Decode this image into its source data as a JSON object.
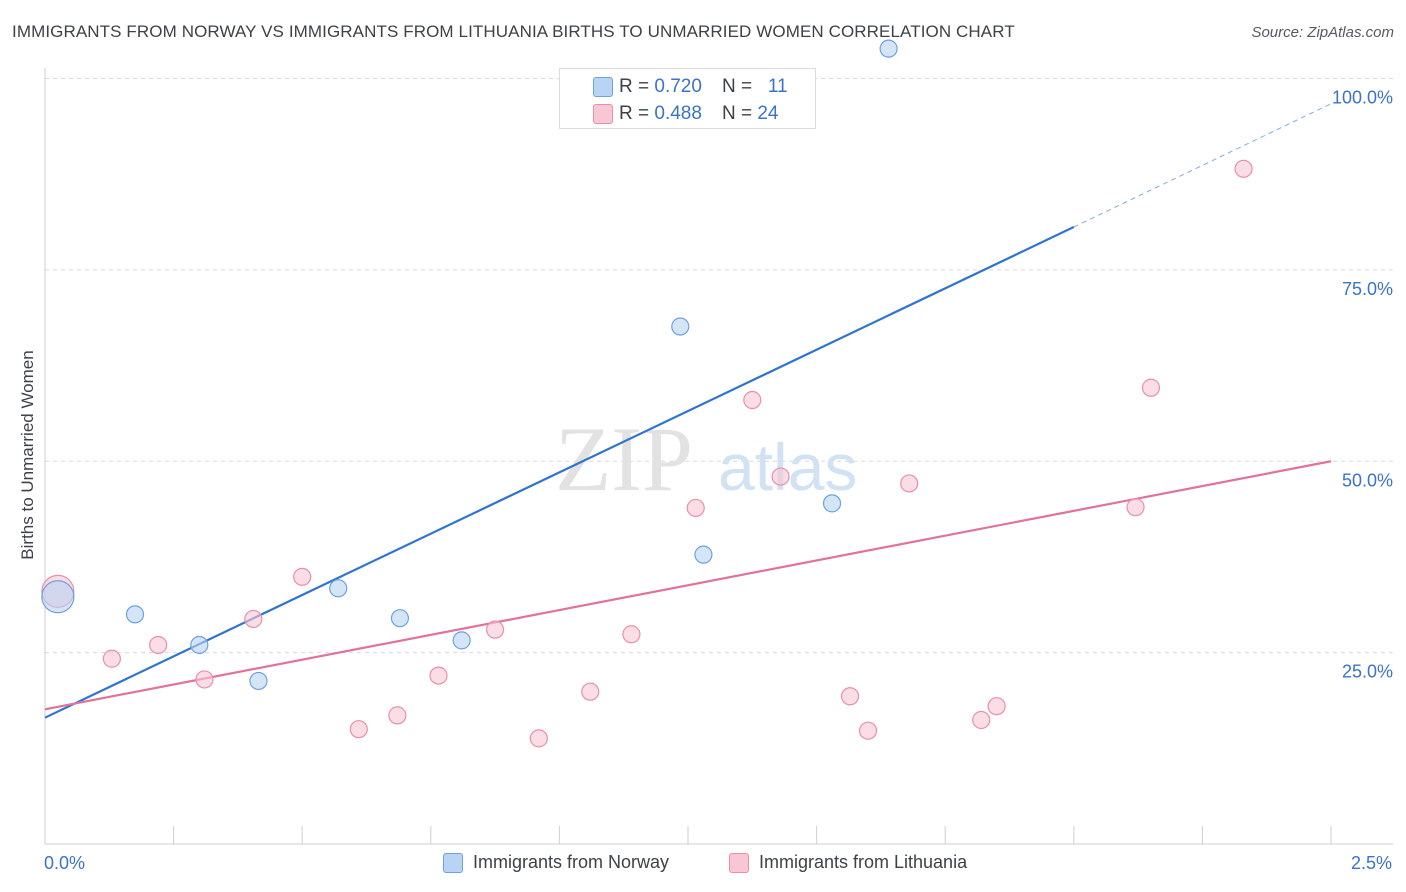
{
  "title": "IMMIGRANTS FROM NORWAY VS IMMIGRANTS FROM LITHUANIA BIRTHS TO UNMARRIED WOMEN CORRELATION CHART",
  "source": "Source: ZipAtlas.com",
  "watermark": {
    "zip": "ZIP",
    "atlas": "atlas"
  },
  "colors": {
    "norway_fill": "#b9d3f4",
    "norway_stroke": "#6fa1e0",
    "norway_line": "#2f74d0",
    "lithuania_fill": "#f9c6d4",
    "lithuania_stroke": "#ea8fab",
    "lithuania_line": "#e0739a",
    "axis_label": "#3b73c8",
    "grid": "#d9d9d9"
  },
  "legend": {
    "rows": [
      {
        "r_label": "R = ",
        "r_value": "0.720",
        "n_label": "N = ",
        "n_value": "11"
      },
      {
        "r_label": "R = ",
        "r_value": "0.488",
        "n_label": "N = ",
        "n_value": "24"
      }
    ],
    "bottom": [
      "Immigrants from Norway",
      "Immigrants from Lithuania"
    ]
  },
  "chart_data": {
    "type": "scatter",
    "title": "IMMIGRANTS FROM NORWAY VS IMMIGRANTS FROM LITHUANIA BIRTHS TO UNMARRIED WOMEN CORRELATION CHART",
    "xlabel": "",
    "ylabel": "Births to Unmarried Women",
    "xlim": [
      0,
      2.5
    ],
    "ylim": [
      0,
      100
    ],
    "x_tick_labels": [
      "0.0%",
      "2.5%"
    ],
    "y_ticks": [
      25,
      50,
      75,
      100
    ],
    "y_tick_labels": [
      "25.0%",
      "50.0%",
      "75.0%",
      "100.0%"
    ],
    "grid": true,
    "legend_position": "top-center",
    "series": [
      {
        "name": "Immigrants from Norway",
        "R": 0.72,
        "N": 11,
        "points": [
          {
            "x": 0.025,
            "y": 32.3,
            "big": true
          },
          {
            "x": 0.175,
            "y": 30.0
          },
          {
            "x": 0.3,
            "y": 26.0
          },
          {
            "x": 0.415,
            "y": 21.3
          },
          {
            "x": 0.57,
            "y": 33.4
          },
          {
            "x": 0.69,
            "y": 29.5
          },
          {
            "x": 0.81,
            "y": 26.6
          },
          {
            "x": 1.235,
            "y": 67.6
          },
          {
            "x": 1.28,
            "y": 37.8
          },
          {
            "x": 1.53,
            "y": 44.5
          },
          {
            "x": 1.64,
            "y": 103.9
          }
        ],
        "trend": {
          "x0": 0.0,
          "y0": 16.5,
          "x1": 2.0,
          "y1": 80.6,
          "dash_to_x": 2.5,
          "dash_to_y": 96.7
        }
      },
      {
        "name": "Immigrants from Lithuania",
        "R": 0.488,
        "N": 24,
        "points": [
          {
            "x": 0.025,
            "y": 33.0,
            "big": true
          },
          {
            "x": 0.13,
            "y": 24.2
          },
          {
            "x": 0.22,
            "y": 26.0
          },
          {
            "x": 0.31,
            "y": 21.5
          },
          {
            "x": 0.405,
            "y": 29.4
          },
          {
            "x": 0.5,
            "y": 34.9
          },
          {
            "x": 0.61,
            "y": 15.0
          },
          {
            "x": 0.685,
            "y": 16.8
          },
          {
            "x": 0.765,
            "y": 22.0
          },
          {
            "x": 0.875,
            "y": 28.0
          },
          {
            "x": 0.96,
            "y": 13.8
          },
          {
            "x": 1.06,
            "y": 19.9
          },
          {
            "x": 1.14,
            "y": 27.4
          },
          {
            "x": 1.265,
            "y": 43.9
          },
          {
            "x": 1.375,
            "y": 58.0
          },
          {
            "x": 1.43,
            "y": 48.0
          },
          {
            "x": 1.565,
            "y": 19.3
          },
          {
            "x": 1.6,
            "y": 14.8
          },
          {
            "x": 1.68,
            "y": 47.1
          },
          {
            "x": 1.82,
            "y": 16.2
          },
          {
            "x": 1.85,
            "y": 18.0
          },
          {
            "x": 2.12,
            "y": 44.0
          },
          {
            "x": 2.15,
            "y": 59.6
          },
          {
            "x": 2.33,
            "y": 88.2
          }
        ],
        "trend": {
          "x0": 0.0,
          "y0": 17.6,
          "x1": 2.5,
          "y1": 50.0
        }
      }
    ]
  }
}
